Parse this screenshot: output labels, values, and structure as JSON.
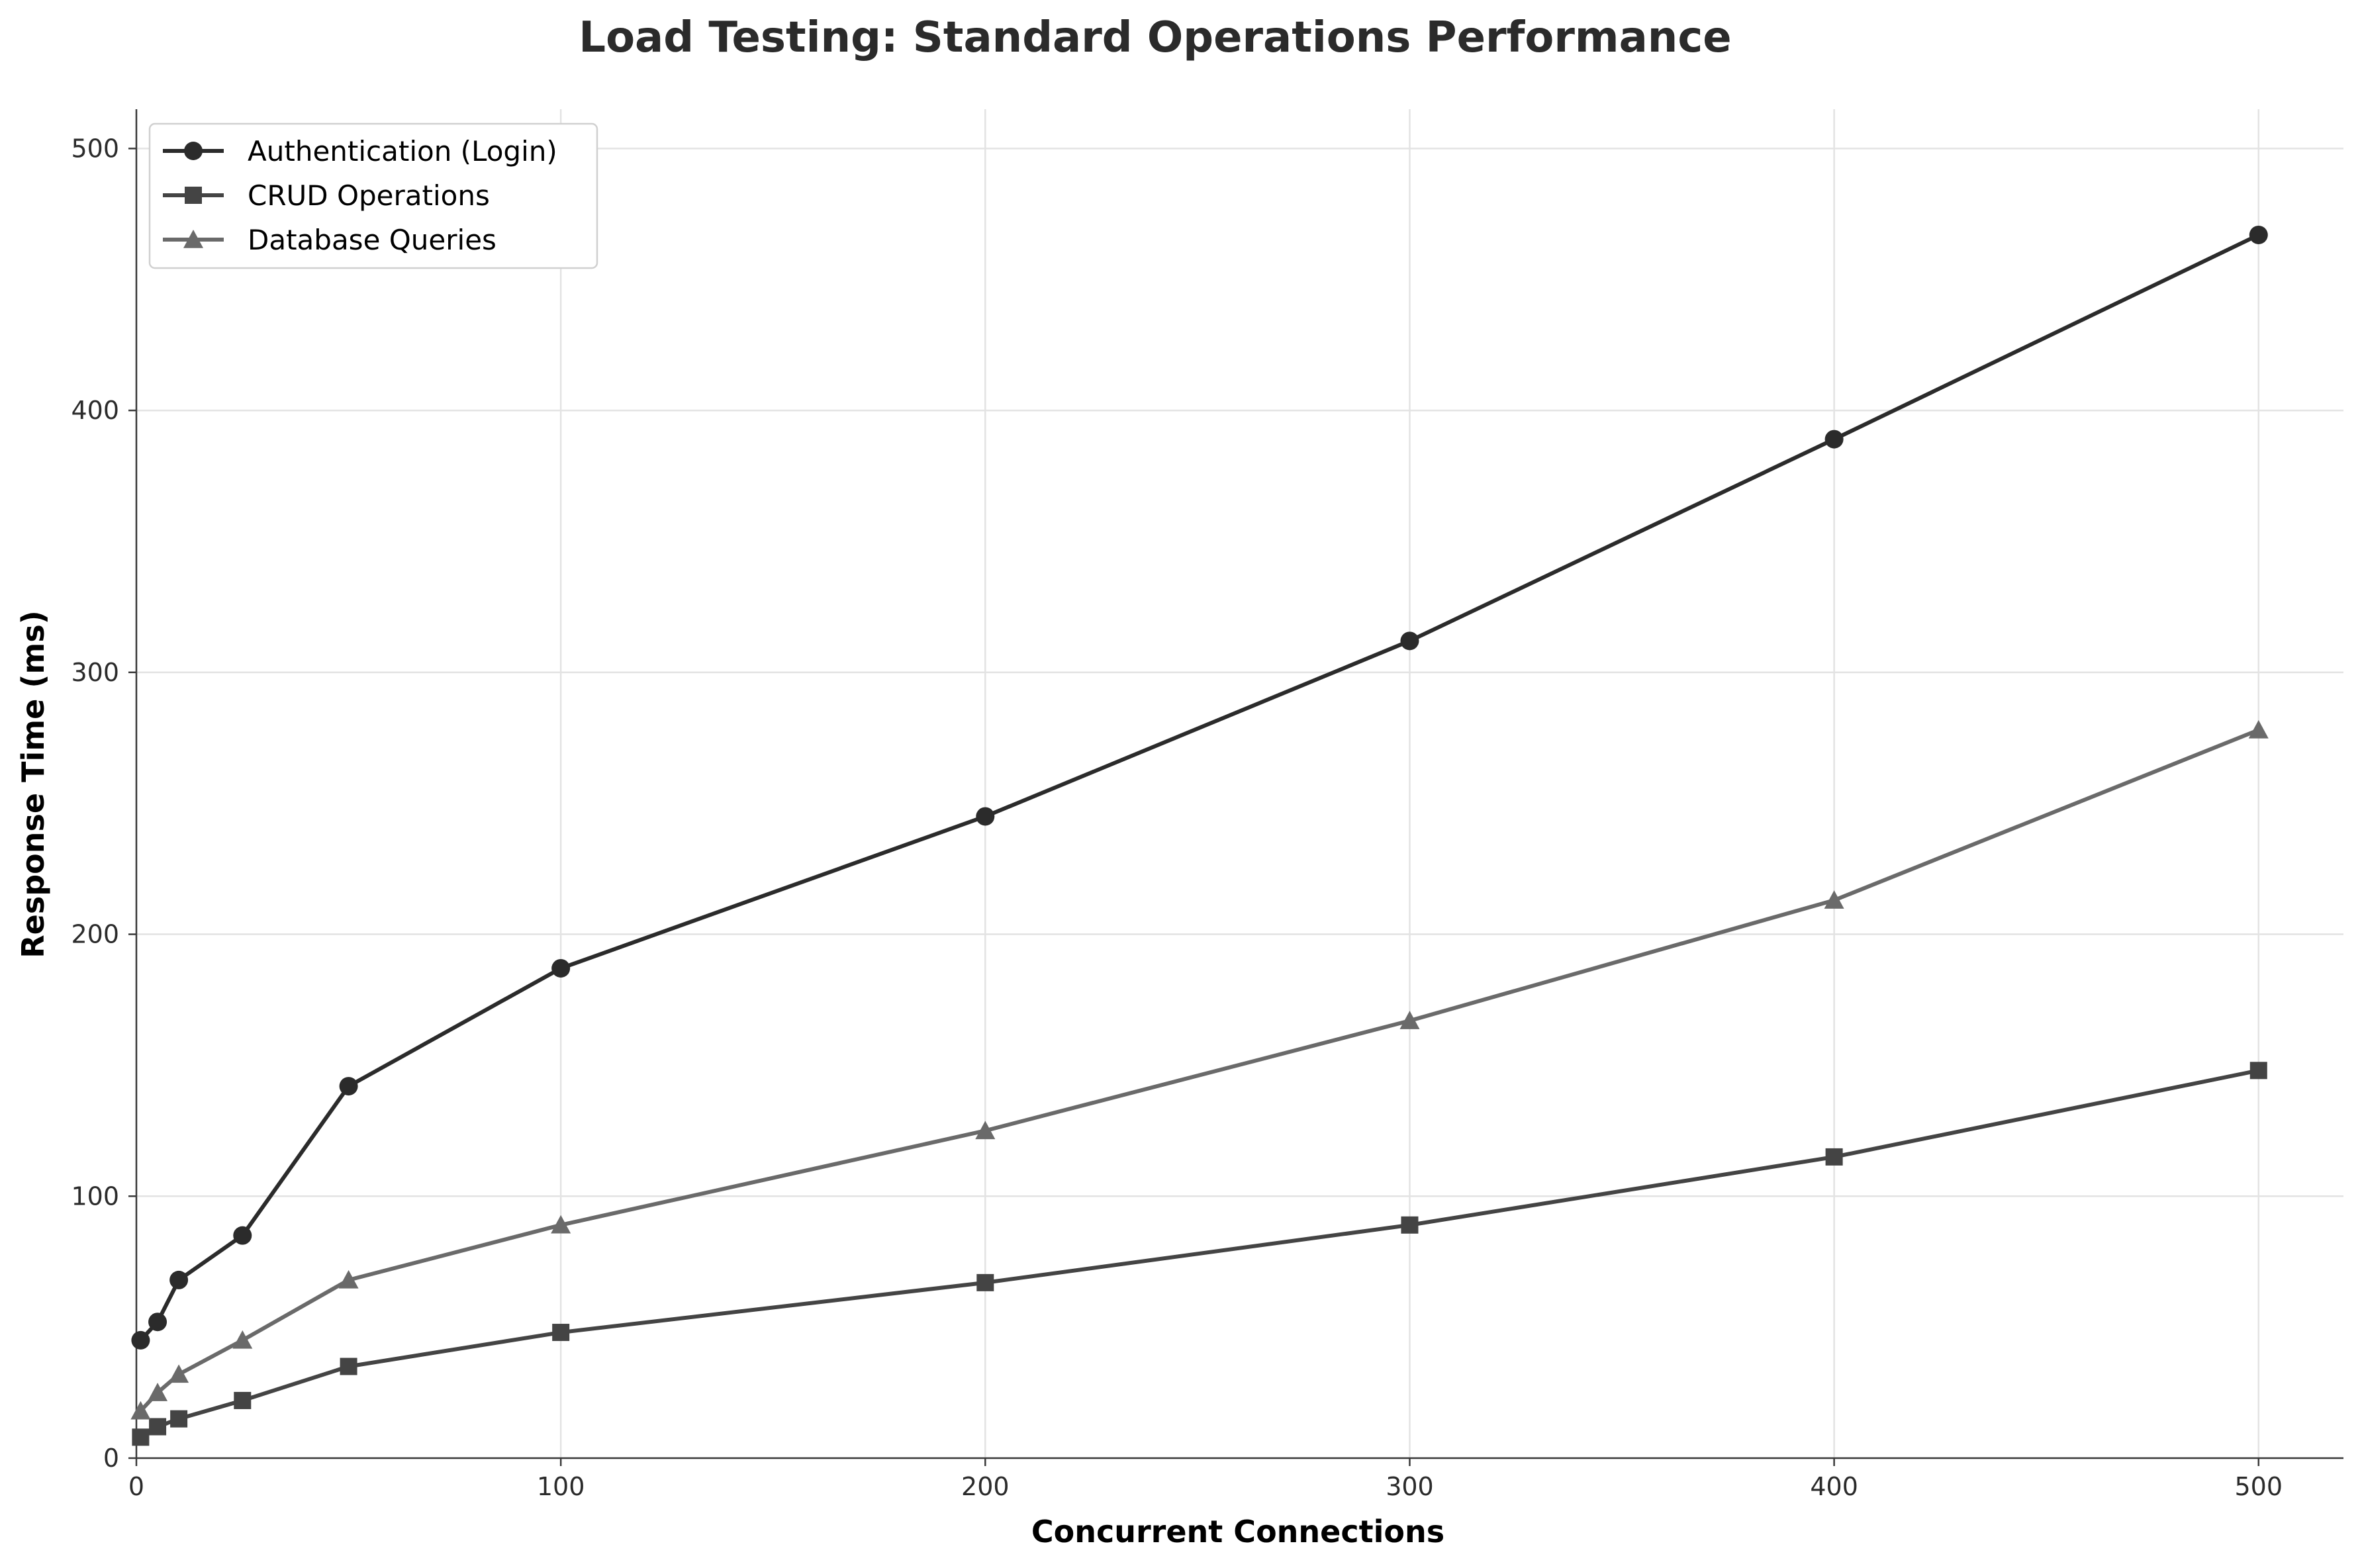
{
  "chart_data": {
    "type": "line",
    "title": "Load Testing: Standard Operations Performance",
    "xlabel": "Concurrent Connections",
    "ylabel": "Response Time (ms)",
    "xlim": [
      0,
      520
    ],
    "ylim": [
      0,
      515
    ],
    "x_ticks": [
      0,
      100,
      200,
      300,
      400,
      500
    ],
    "y_ticks": [
      0,
      100,
      200,
      300,
      400,
      500
    ],
    "grid": true,
    "legend_position": "top-left",
    "x": [
      1,
      5,
      10,
      25,
      50,
      100,
      200,
      300,
      400,
      500
    ],
    "series": [
      {
        "name": "Authentication (Login)",
        "marker": "circle",
        "color": "#2b2b2b",
        "values": [
          45,
          52,
          68,
          85,
          142,
          187,
          245,
          312,
          389,
          467
        ]
      },
      {
        "name": "CRUD Operations",
        "marker": "square",
        "color": "#444444",
        "values": [
          8,
          12,
          15,
          22,
          35,
          48,
          67,
          89,
          115,
          148
        ]
      },
      {
        "name": "Database Queries",
        "marker": "triangle",
        "color": "#6a6a6a",
        "values": [
          18,
          25,
          32,
          45,
          68,
          89,
          125,
          167,
          213,
          278
        ]
      }
    ]
  }
}
